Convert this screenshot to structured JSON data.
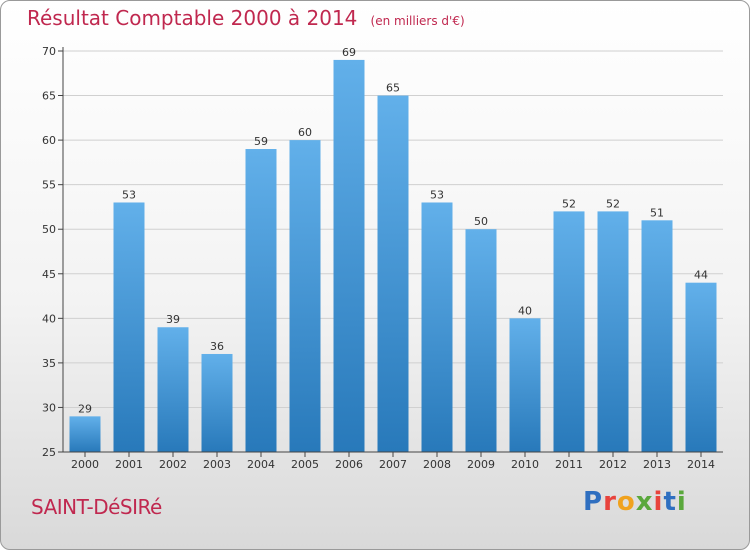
{
  "header": {
    "title": "Résultat Comptable 2000 à 2014",
    "subtitle": "(en milliers d'€)"
  },
  "footer": {
    "commune": "SAINT-DéSIRé",
    "logo_letters": [
      "P",
      "r",
      "o",
      "x",
      "i",
      "t",
      "i"
    ],
    "logo_colors": [
      "#2f6fc0",
      "#e8433c",
      "#f0a21e",
      "#5aa83c",
      "#e8433c",
      "#2f6fc0",
      "#5aa83c"
    ]
  },
  "colors": {
    "bar_top": "#62b0ea",
    "bar_bottom": "#2879ba",
    "grid": "#d0d0d0",
    "axis": "#444444",
    "title": "#c0284f"
  },
  "chart_data": {
    "type": "bar",
    "title": "Résultat Comptable 2000 à 2014",
    "subtitle": "(en milliers d'€)",
    "xlabel": "",
    "ylabel": "",
    "ylim": [
      25,
      70
    ],
    "yticks": [
      25,
      30,
      35,
      40,
      45,
      50,
      55,
      60,
      65,
      70
    ],
    "grid": true,
    "categories": [
      "2000",
      "2001",
      "2002",
      "2003",
      "2004",
      "2005",
      "2006",
      "2007",
      "2008",
      "2009",
      "2010",
      "2011",
      "2012",
      "2013",
      "2014"
    ],
    "values": [
      29,
      53,
      39,
      36,
      59,
      60,
      69,
      65,
      53,
      50,
      40,
      52,
      52,
      51,
      44
    ]
  }
}
